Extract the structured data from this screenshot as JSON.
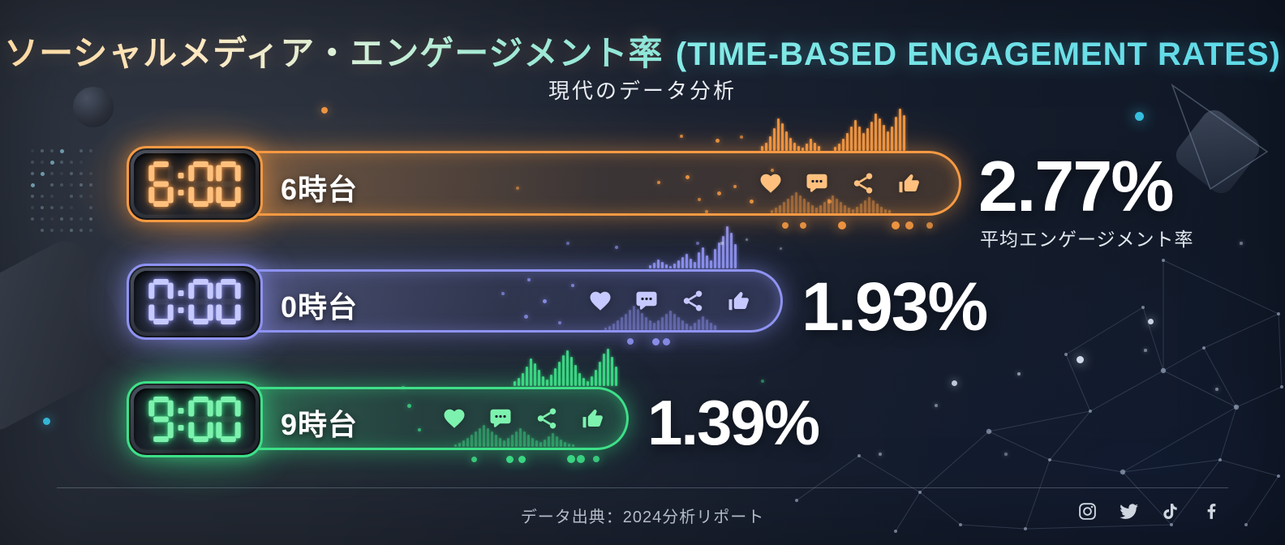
{
  "header": {
    "title_jp": "ソーシャルメディア・エンゲージメント率",
    "title_en": "(TIME-BASED ENGAGEMENT RATES)",
    "subtitle": "現代のデータ分析"
  },
  "rows": [
    {
      "time": "6:00",
      "label": "6時台",
      "value": "2.77%",
      "sublabel": "平均エンゲージメント率",
      "accent": "#f79a43",
      "digit_color": "#ffc07e"
    },
    {
      "time": "0:00",
      "label": "0時台",
      "value": "1.93%",
      "sublabel": "",
      "accent": "#8f93f2",
      "digit_color": "#c6c9ff"
    },
    {
      "time": "9:00",
      "label": "9時台",
      "value": "1.39%",
      "sublabel": "",
      "accent": "#3ee088",
      "digit_color": "#7df2ae"
    }
  ],
  "footer": {
    "source": "データ出典：2024分析リポート",
    "social": [
      "instagram",
      "twitter",
      "tiktok",
      "facebook"
    ]
  },
  "colors": {
    "title_warm": "#ffd9a0",
    "title_cyan": "#5cd9e8",
    "background_dark": "#101827",
    "background_light": "#272d38",
    "text_primary": "#ffffff",
    "text_muted": "#b4bcc8"
  },
  "chart_data": {
    "type": "bar",
    "orientation": "horizontal",
    "title": "ソーシャルメディア・エンゲージメント率 (TIME-BASED ENGAGEMENT RATES)",
    "subtitle": "現代のデータ分析",
    "categories": [
      "6時台 (6:00)",
      "0時台 (0:00)",
      "9時台 (9:00)"
    ],
    "values": [
      2.77,
      1.93,
      1.39
    ],
    "unit": "%",
    "value_label": "平均エンゲージメント率",
    "source": "データ出典：2024分析リポート",
    "legend": false,
    "grid": false
  }
}
